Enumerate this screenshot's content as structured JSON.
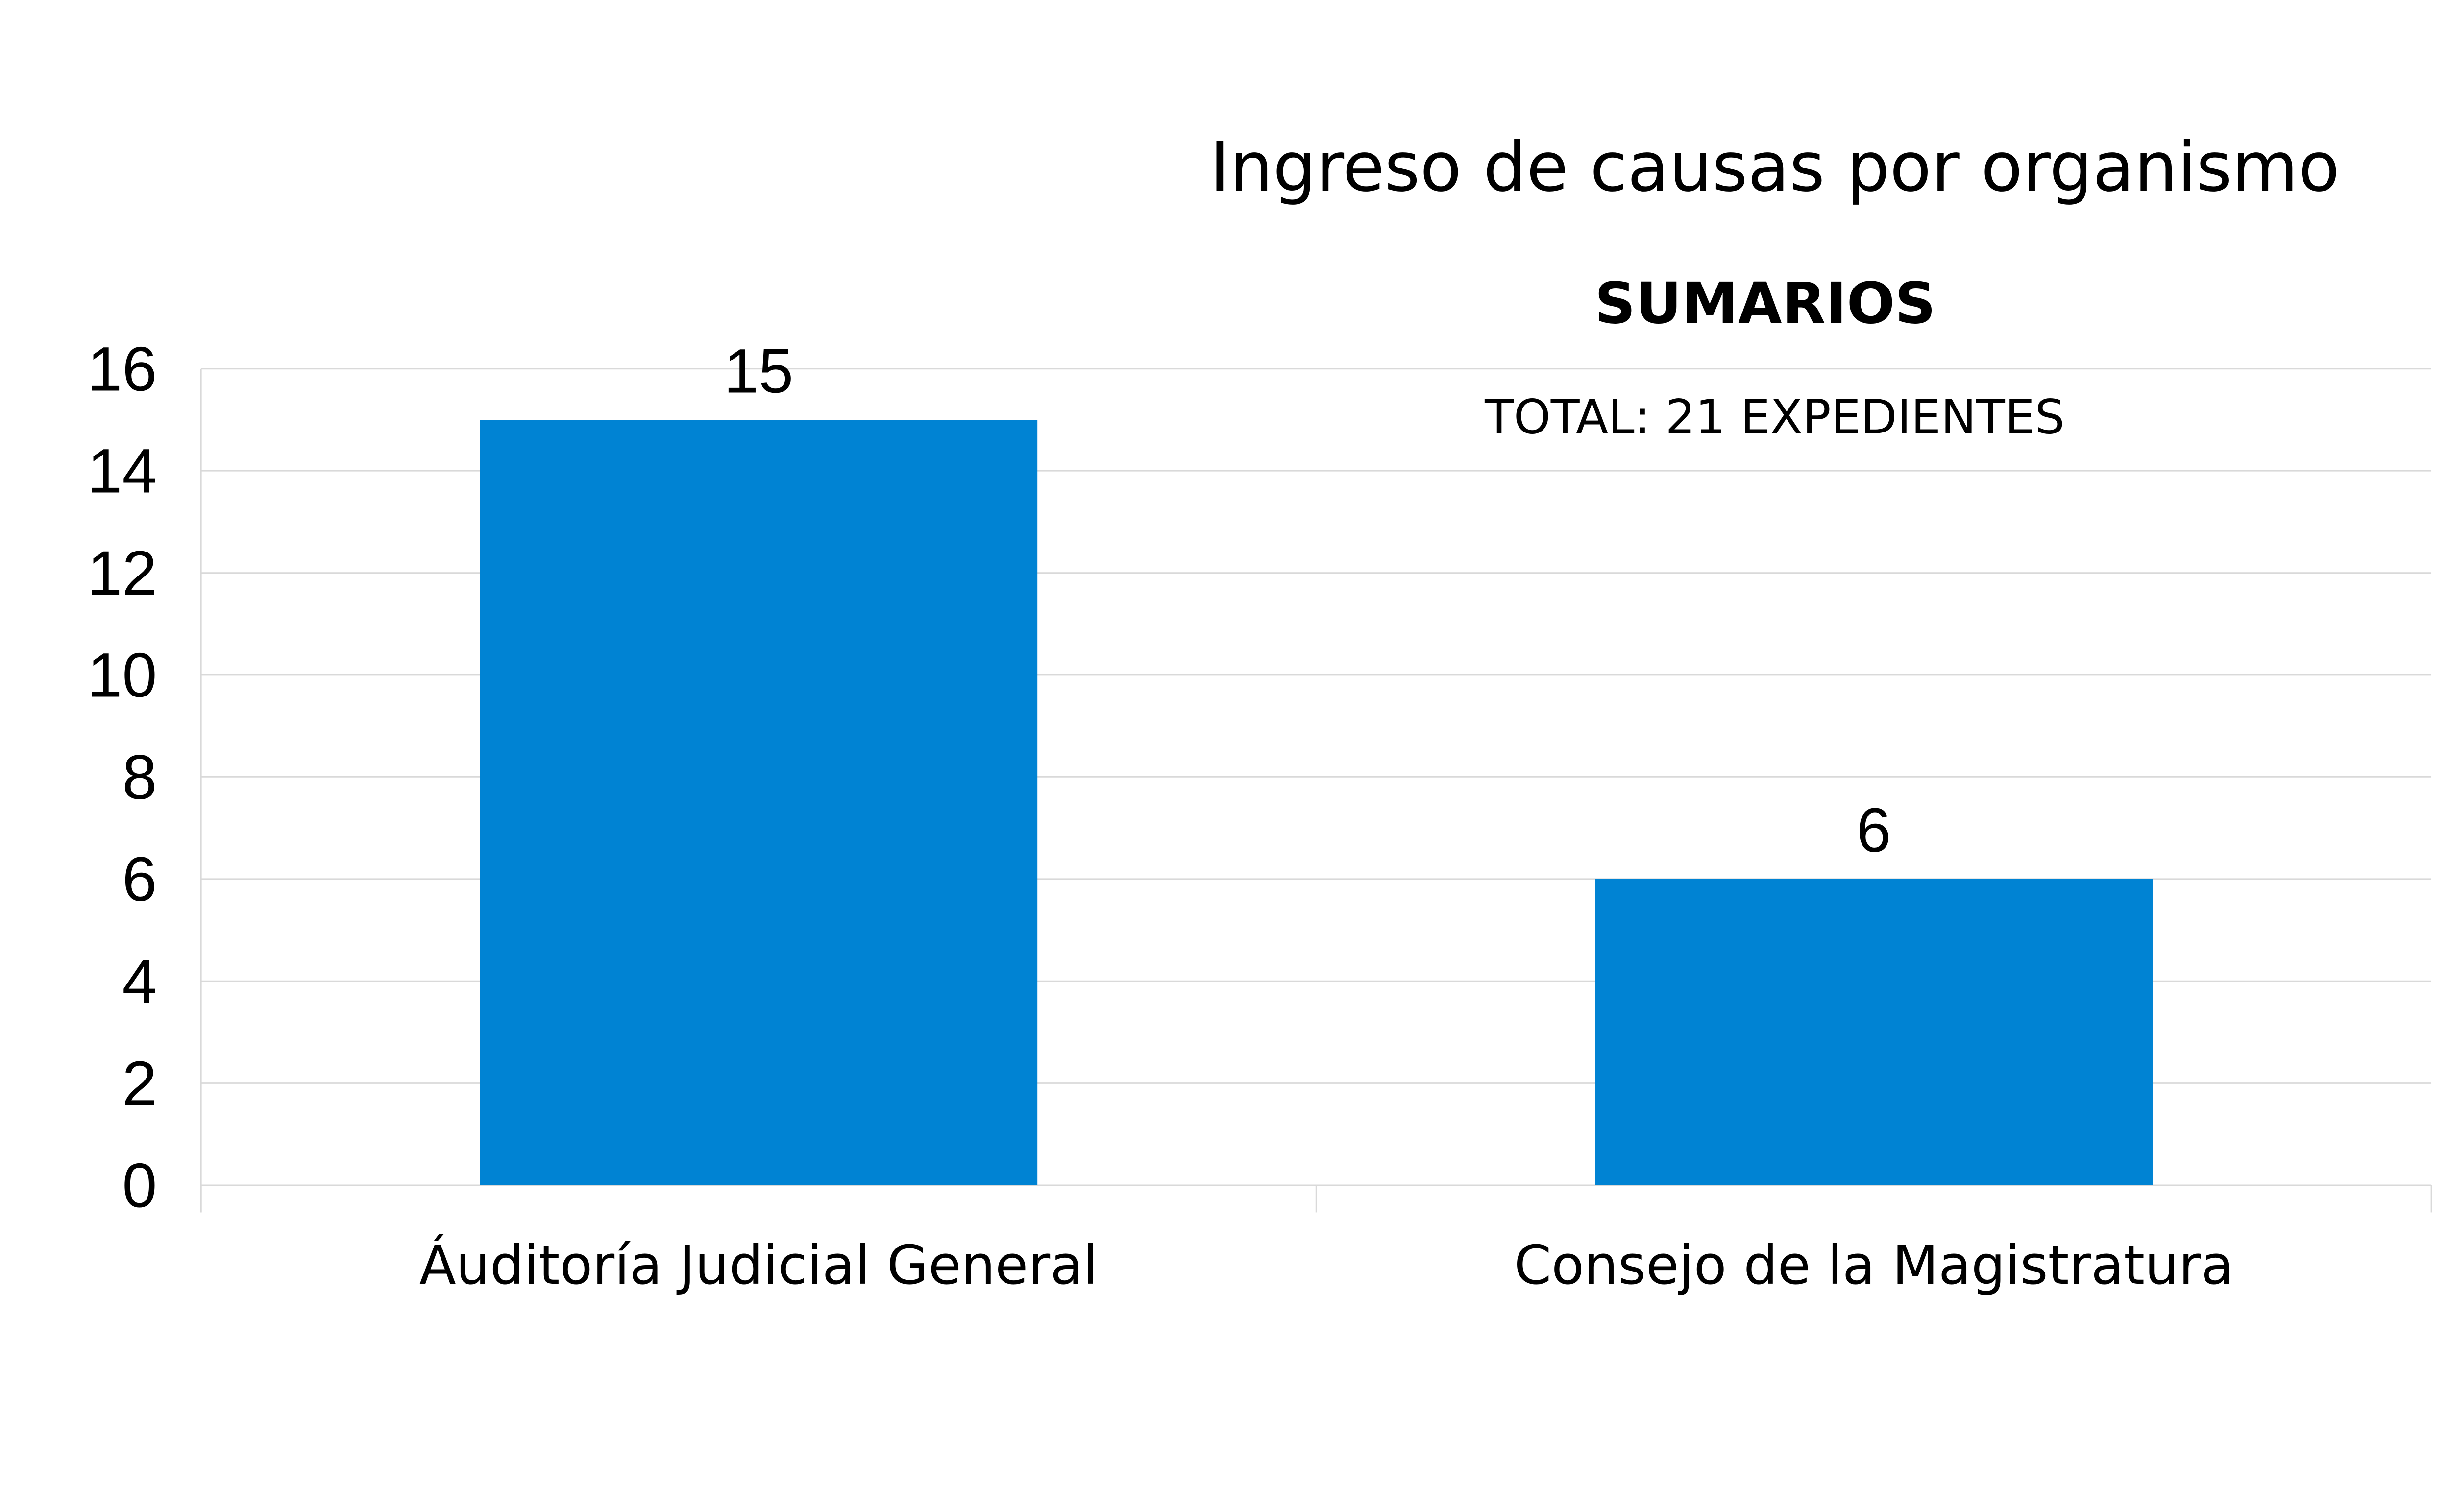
{
  "chart_data": {
    "type": "bar",
    "title": "Ingreso de causas por organismo",
    "subtitle": "SUMARIOS",
    "annotation": "TOTAL: 21 EXPEDIENTES",
    "categories": [
      "Áuditoría Judicial General",
      "Consejo de la Magistratura"
    ],
    "values": [
      15,
      6
    ],
    "data_labels": [
      "15",
      "6"
    ],
    "xlabel": "",
    "ylabel": "",
    "ylim": [
      0,
      16
    ],
    "yticks": [
      0,
      2,
      4,
      6,
      8,
      10,
      12,
      14,
      16
    ],
    "grid": true,
    "legend": "none",
    "colors": {
      "bar": "#0083D3",
      "grid": "#D9D9D9"
    }
  }
}
